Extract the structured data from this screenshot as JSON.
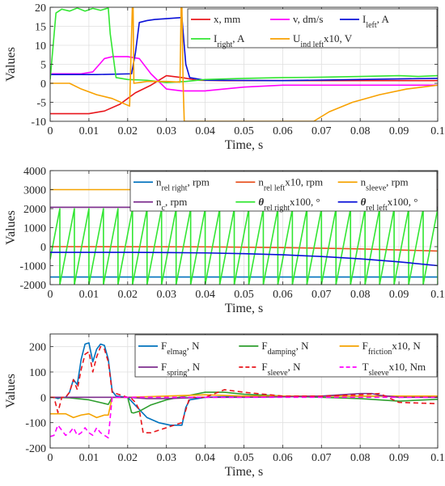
{
  "chart_data": [
    {
      "type": "line",
      "xlabel": "Time, s",
      "ylabel": "Values",
      "xlim": [
        0,
        0.1
      ],
      "ylim": [
        -10,
        20
      ],
      "grid": true,
      "legend_placement": "top-right",
      "xticks": [
        0,
        0.01,
        0.02,
        0.03,
        0.04,
        0.05,
        0.06,
        0.07,
        0.08,
        0.09,
        0.1
      ],
      "xtick_labels": [
        "0",
        "0.01",
        "0.02",
        "0.03",
        "0.04",
        "0.05",
        "0.06",
        "0.07",
        "0.08",
        "0.09",
        "0.1"
      ],
      "yticks": [
        -10,
        -5,
        0,
        5,
        10,
        15,
        20
      ],
      "ytick_labels": [
        "-10",
        "-5",
        "0",
        "5",
        "10",
        "15",
        "20"
      ],
      "legend_columns": 3,
      "series": [
        {
          "name": "x, mm",
          "label_parts": [
            [
              "x, mm",
              ""
            ]
          ],
          "color": "#e8161c",
          "x": [
            0,
            0.005,
            0.01,
            0.014,
            0.018,
            0.022,
            0.026,
            0.03,
            0.034,
            0.038,
            0.045,
            0.06,
            0.1
          ],
          "y": [
            -8,
            -8,
            -8,
            -7.3,
            -5.5,
            -2.5,
            -0.5,
            2,
            1.5,
            0.8,
            0.7,
            0.7,
            0.7
          ]
        },
        {
          "name": "v, dm/s",
          "label_parts": [
            [
              "v, dm/s",
              ""
            ]
          ],
          "color": "#ff00ff",
          "x": [
            0,
            0.004,
            0.008,
            0.011,
            0.014,
            0.016,
            0.02,
            0.023,
            0.026,
            0.03,
            0.034,
            0.04,
            0.05,
            0.06,
            0.1
          ],
          "y": [
            2.5,
            2.5,
            2.5,
            3,
            6.5,
            7,
            7,
            6.5,
            2.5,
            -1.5,
            -2,
            -2,
            -1,
            -0.5,
            -0.5
          ]
        },
        {
          "name": "I_left, A",
          "label_parts": [
            [
              "I",
              ""
            ],
            [
              "left",
              "sub"
            ],
            [
              ", A",
              ""
            ]
          ],
          "color": "#0a10d8",
          "x": [
            0,
            0.005,
            0.012,
            0.021,
            0.022,
            0.023,
            0.025,
            0.027,
            0.03,
            0.034,
            0.035,
            0.036,
            0.04,
            0.06,
            0.08,
            0.1
          ],
          "y": [
            2.3,
            2.3,
            2.3,
            2.5,
            8,
            16,
            16.5,
            16.8,
            17,
            17.3,
            5,
            1.5,
            0.8,
            0.7,
            1,
            1.3
          ]
        },
        {
          "name": "I_right, A",
          "label_parts": [
            [
              "I",
              ""
            ],
            [
              "right",
              "sub"
            ],
            [
              ", A",
              ""
            ]
          ],
          "color": "#32e632",
          "x": [
            0,
            0.0015,
            0.003,
            0.005,
            0.007,
            0.009,
            0.011,
            0.013,
            0.015,
            0.0155,
            0.017,
            0.02,
            0.025,
            0.03,
            0.035,
            0.04,
            0.05,
            0.06,
            0.07,
            0.08,
            0.09,
            0.095,
            0.1
          ],
          "y": [
            1,
            18.5,
            19.5,
            19,
            19.8,
            19,
            19.7,
            19.2,
            19.8,
            13,
            1.5,
            1,
            0.8,
            0.2,
            0.5,
            1,
            1.3,
            1.5,
            1.6,
            1.8,
            2,
            1.8,
            2
          ]
        },
        {
          "name": "U_ind left x10, V",
          "label_parts": [
            [
              "U",
              ""
            ],
            [
              "ind left",
              "sub"
            ],
            [
              "x10, V",
              ""
            ]
          ],
          "color": "#f8a100",
          "x": [
            0,
            0.005,
            0.008,
            0.012,
            0.016,
            0.0205,
            0.0212,
            0.0214,
            0.0216,
            0.025,
            0.03,
            0.0335,
            0.0338,
            0.034,
            0.0343,
            0.0346,
            0.068,
            0.072,
            0.078,
            0.085,
            0.092,
            0.1
          ],
          "y": [
            0,
            0,
            -1.5,
            -3,
            -4,
            -6,
            20,
            20,
            0,
            0.5,
            0.5,
            0.3,
            20,
            20,
            0,
            -10,
            -10,
            -7.5,
            -5,
            -3,
            -1.5,
            -0.5
          ]
        }
      ]
    },
    {
      "type": "line",
      "xlabel": "Time, s",
      "ylabel": "Values",
      "xlim": [
        0,
        0.1
      ],
      "ylim": [
        -2000,
        4000
      ],
      "grid": true,
      "legend_placement": "top-right",
      "xticks": [
        0,
        0.01,
        0.02,
        0.03,
        0.04,
        0.05,
        0.06,
        0.07,
        0.08,
        0.09,
        0.1
      ],
      "xtick_labels": [
        "0",
        "0.01",
        "0.02",
        "0.03",
        "0.04",
        "0.05",
        "0.06",
        "0.07",
        "0.08",
        "0.09",
        "0.1"
      ],
      "yticks": [
        -2000,
        -1000,
        0,
        1000,
        2000,
        3000,
        4000
      ],
      "ytick_labels": [
        "-2000",
        "-1000",
        "0",
        "1000",
        "2000",
        "3000",
        "4000"
      ],
      "legend_columns": 3,
      "series": [
        {
          "name": "n_rel right, rpm",
          "label_parts": [
            [
              "n",
              ""
            ],
            [
              "rel right",
              "sub"
            ],
            [
              ", rpm",
              ""
            ]
          ],
          "color": "#0072bd",
          "x": [
            0,
            0.1
          ],
          "y": [
            -1600,
            -1600
          ]
        },
        {
          "name": "n_rel left x10, rpm",
          "label_parts": [
            [
              "n",
              ""
            ],
            [
              "rel left",
              "sub"
            ],
            [
              "x10, rpm",
              ""
            ]
          ],
          "color": "#e8501e",
          "x": [
            0,
            0.04,
            0.06,
            0.08,
            0.1
          ],
          "y": [
            0,
            -10,
            -50,
            -120,
            -230
          ]
        },
        {
          "name": "n_sleeve, rpm",
          "label_parts": [
            [
              "n",
              ""
            ],
            [
              "sleeve",
              "sub"
            ],
            [
              ", rpm",
              ""
            ]
          ],
          "color": "#f5a300",
          "x": [
            0,
            0.1
          ],
          "y": [
            3000,
            3000
          ]
        },
        {
          "name": "n_c, rpm",
          "label_parts": [
            [
              "n",
              ""
            ],
            [
              "c",
              "sub"
            ],
            [
              ", rpm",
              ""
            ]
          ],
          "color": "#7e2f8e",
          "x": [
            0,
            0.1
          ],
          "y": [
            2070,
            2070
          ]
        },
        {
          "name": "θ_rel right x100, °",
          "label_parts": [
            [
              "θ",
              "italic"
            ],
            [
              "rel right",
              "sub"
            ],
            [
              "x100, °",
              ""
            ]
          ],
          "color": "#32e632",
          "sawtooth": {
            "period": 0.00375,
            "start": 0.0025,
            "min": -2000,
            "max": 2000
          }
        },
        {
          "name": "θ_rel left x100, °",
          "label_parts": [
            [
              "θ",
              "italic"
            ],
            [
              "rel left",
              "sub"
            ],
            [
              "x100, °",
              ""
            ]
          ],
          "color": "#0a10d8",
          "x": [
            0,
            0.01,
            0.02,
            0.03,
            0.04,
            0.05,
            0.06,
            0.07,
            0.08,
            0.09,
            0.1
          ],
          "y": [
            -300,
            -300,
            -300,
            -310,
            -330,
            -370,
            -430,
            -520,
            -640,
            -800,
            -1000
          ]
        }
      ]
    },
    {
      "type": "line",
      "xlabel": "Time, s",
      "ylabel": "Values",
      "xlim": [
        0,
        0.1
      ],
      "ylim": [
        -200,
        250
      ],
      "grid": true,
      "legend_placement": "top-right",
      "xticks": [
        0,
        0.01,
        0.02,
        0.03,
        0.04,
        0.05,
        0.06,
        0.07,
        0.08,
        0.09,
        0.1
      ],
      "xtick_labels": [
        "0",
        "0.01",
        "0.02",
        "0.03",
        "0.04",
        "0.05",
        "0.06",
        "0.07",
        "0.08",
        "0.09",
        "0.1"
      ],
      "yticks": [
        -200,
        -100,
        0,
        100,
        200
      ],
      "ytick_labels": [
        "-200",
        "-100",
        "0",
        "100",
        "200"
      ],
      "legend_columns": 3,
      "series": [
        {
          "name": "F_elmag, N",
          "label_parts": [
            [
              "F",
              ""
            ],
            [
              "elmag",
              "sub"
            ],
            [
              ", N",
              ""
            ]
          ],
          "color": "#0072bd",
          "x": [
            0,
            0.001,
            0.002,
            0.003,
            0.004,
            0.005,
            0.006,
            0.007,
            0.008,
            0.009,
            0.01,
            0.011,
            0.012,
            0.013,
            0.014,
            0.015,
            0.016,
            0.017,
            0.02,
            0.025,
            0.028,
            0.031,
            0.034,
            0.035,
            0.036,
            0.038,
            0.04,
            0.05,
            0.06,
            0.07,
            0.08,
            0.09,
            0.1
          ],
          "y": [
            0,
            0,
            -5,
            0,
            0,
            20,
            70,
            50,
            150,
            210,
            215,
            140,
            190,
            210,
            205,
            150,
            25,
            5,
            0,
            -80,
            -100,
            -110,
            -110,
            -40,
            -10,
            -5,
            0,
            5,
            5,
            5,
            5,
            5,
            5
          ]
        },
        {
          "name": "F_damping, N",
          "label_parts": [
            [
              "F",
              ""
            ],
            [
              "damping",
              "sub"
            ],
            [
              ", N",
              ""
            ]
          ],
          "color": "#2e9e2e",
          "x": [
            0,
            0.005,
            0.01,
            0.015,
            0.016,
            0.02,
            0.021,
            0.0215,
            0.023,
            0.026,
            0.03,
            0.035,
            0.04,
            0.045,
            0.05,
            0.06,
            0.07,
            0.08,
            0.09,
            0.1
          ],
          "y": [
            0,
            -2,
            -10,
            -28,
            0,
            0,
            -60,
            -62,
            -55,
            -30,
            -10,
            5,
            20,
            20,
            12,
            5,
            0,
            -5,
            -15,
            -8
          ]
        },
        {
          "name": "F_friction x10, N",
          "label_parts": [
            [
              "F",
              ""
            ],
            [
              "friction",
              "sub"
            ],
            [
              "x10, N",
              ""
            ]
          ],
          "color": "#f5a300",
          "x": [
            0,
            0.002,
            0.004,
            0.006,
            0.008,
            0.01,
            0.012,
            0.014,
            0.015,
            0.016,
            0.02,
            0.03,
            0.04,
            0.05,
            0.06,
            0.07,
            0.08,
            0.09,
            0.1
          ],
          "y": [
            -65,
            -65,
            -65,
            -80,
            -70,
            -65,
            -80,
            -70,
            -70,
            0,
            0,
            5,
            10,
            5,
            5,
            5,
            5,
            5,
            5
          ]
        },
        {
          "name": "F_spring, N",
          "label_parts": [
            [
              "F",
              ""
            ],
            [
              "spring",
              "sub"
            ],
            [
              ", N",
              ""
            ]
          ],
          "color": "#7e2f8e",
          "x": [
            0,
            0.01,
            0.02,
            0.025,
            0.03,
            0.04,
            0.05,
            0.06,
            0.07,
            0.075,
            0.08,
            0.083,
            0.085,
            0.09,
            0.1
          ],
          "y": [
            0,
            0,
            0,
            -5,
            -5,
            0,
            0,
            2,
            5,
            10,
            15,
            15,
            8,
            0,
            0
          ]
        },
        {
          "name": "F_sleeve, N",
          "label_parts": [
            [
              "F",
              ""
            ],
            [
              "sleeve",
              "sub"
            ],
            [
              ", N",
              ""
            ]
          ],
          "color": "#e8161c",
          "dash": "6,4",
          "x": [
            0,
            0.001,
            0.002,
            0.003,
            0.004,
            0.005,
            0.006,
            0.007,
            0.008,
            0.009,
            0.01,
            0.011,
            0.012,
            0.013,
            0.014,
            0.015,
            0.016,
            0.02,
            0.021,
            0.022,
            0.023,
            0.024,
            0.026,
            0.03,
            0.034,
            0.036,
            0.04,
            0.045,
            0.05,
            0.06,
            0.07,
            0.08,
            0.085,
            0.09,
            0.1
          ],
          "y": [
            0,
            0,
            -60,
            0,
            0,
            20,
            70,
            30,
            110,
            170,
            180,
            100,
            160,
            200,
            190,
            140,
            20,
            0,
            -5,
            -20,
            -50,
            -140,
            -140,
            -120,
            -100,
            0,
            0,
            30,
            20,
            5,
            5,
            10,
            15,
            -20,
            -25
          ]
        },
        {
          "name": "T_sleeve x10, Nm",
          "label_parts": [
            [
              "T",
              ""
            ],
            [
              "sleeve",
              "sub"
            ],
            [
              "x10, Nm",
              ""
            ]
          ],
          "color": "#ff00ff",
          "dash": "6,4",
          "x": [
            0,
            0.001,
            0.002,
            0.003,
            0.004,
            0.005,
            0.006,
            0.007,
            0.008,
            0.009,
            0.01,
            0.011,
            0.012,
            0.013,
            0.014,
            0.015,
            0.016,
            0.02,
            0.03,
            0.04,
            0.05,
            0.06,
            0.07,
            0.08,
            0.09,
            0.1
          ],
          "y": [
            -155,
            -150,
            -110,
            -130,
            -150,
            -140,
            -120,
            -150,
            -140,
            -120,
            -140,
            -150,
            -120,
            -140,
            -150,
            -160,
            0,
            0,
            0,
            0,
            0,
            0,
            0,
            0,
            0,
            0
          ]
        }
      ]
    }
  ]
}
